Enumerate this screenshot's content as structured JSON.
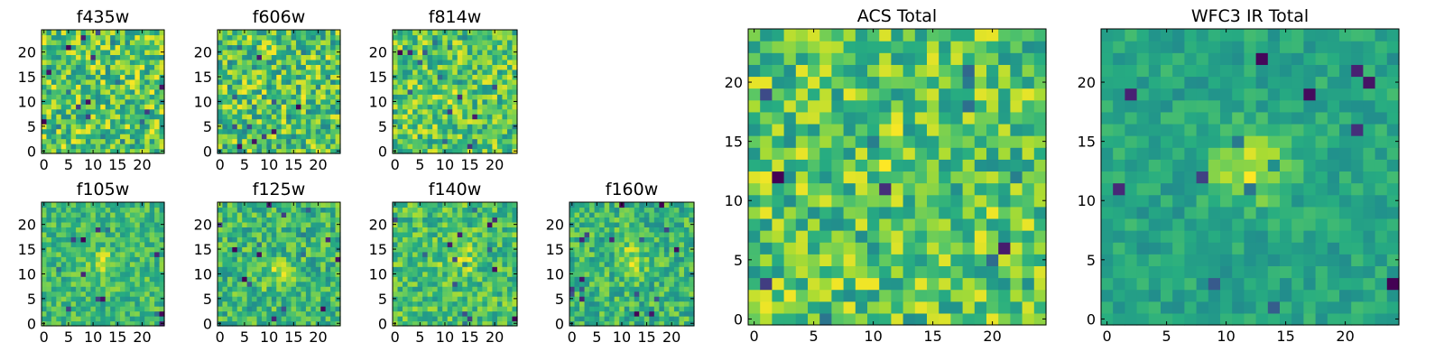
{
  "figure": {
    "colormap": "viridis",
    "colors": [
      "#440154",
      "#3b528b",
      "#21918c",
      "#5ec962",
      "#fde725"
    ]
  },
  "chart_data": [
    {
      "type": "heatmap",
      "title": "f435w",
      "grid_size": 25,
      "xticks": [
        "0",
        "5",
        "10",
        "15",
        "20"
      ],
      "yticks": [
        "0",
        "5",
        "10",
        "15",
        "20"
      ],
      "xlim": [
        0,
        24
      ],
      "ylim": [
        0,
        24
      ],
      "seed": 11,
      "blob": {
        "x": 12,
        "y": 6,
        "strength": 0.05
      },
      "noise": 0.85
    },
    {
      "type": "heatmap",
      "title": "f606w",
      "grid_size": 25,
      "xticks": [
        "0",
        "5",
        "10",
        "15",
        "20"
      ],
      "yticks": [
        "0",
        "5",
        "10",
        "15",
        "20"
      ],
      "xlim": [
        0,
        24
      ],
      "ylim": [
        0,
        24
      ],
      "seed": 23,
      "blob": {
        "x": 12,
        "y": 12,
        "strength": 0.03
      },
      "noise": 0.9
    },
    {
      "type": "heatmap",
      "title": "f814w",
      "grid_size": 25,
      "xticks": [
        "0",
        "5",
        "10",
        "15",
        "20"
      ],
      "yticks": [
        "0",
        "5",
        "10",
        "15",
        "20"
      ],
      "xlim": [
        0,
        24
      ],
      "ylim": [
        0,
        24
      ],
      "seed": 37,
      "blob": {
        "x": 12,
        "y": 12,
        "strength": 0.1
      },
      "noise": 0.85
    },
    {
      "type": "heatmap",
      "title": "f105w",
      "grid_size": 25,
      "xticks": [
        "0",
        "5",
        "10",
        "15",
        "20"
      ],
      "yticks": [
        "0",
        "5",
        "10",
        "15",
        "20"
      ],
      "xlim": [
        0,
        24
      ],
      "ylim": [
        0,
        24
      ],
      "seed": 41,
      "blob": {
        "x": 12,
        "y": 12,
        "strength": 0.3
      },
      "noise": 0.55
    },
    {
      "type": "heatmap",
      "title": "f125w",
      "grid_size": 25,
      "xticks": [
        "0",
        "5",
        "10",
        "15",
        "20"
      ],
      "yticks": [
        "0",
        "5",
        "10",
        "15",
        "20"
      ],
      "xlim": [
        0,
        24
      ],
      "ylim": [
        0,
        24
      ],
      "seed": 53,
      "blob": {
        "x": 12,
        "y": 10,
        "strength": 0.3
      },
      "noise": 0.6
    },
    {
      "type": "heatmap",
      "title": "f140w",
      "grid_size": 25,
      "xticks": [
        "0",
        "5",
        "10",
        "15",
        "20"
      ],
      "yticks": [
        "0",
        "5",
        "10",
        "15",
        "20"
      ],
      "xlim": [
        0,
        24
      ],
      "ylim": [
        0,
        24
      ],
      "seed": 67,
      "blob": {
        "x": 13,
        "y": 13,
        "strength": 0.3
      },
      "noise": 0.6
    },
    {
      "type": "heatmap",
      "title": "f160w",
      "grid_size": 25,
      "xticks": [
        "0",
        "5",
        "10",
        "15",
        "20"
      ],
      "yticks": [
        "0",
        "5",
        "10",
        "15",
        "20"
      ],
      "xlim": [
        0,
        24
      ],
      "ylim": [
        0,
        24
      ],
      "seed": 79,
      "blob": {
        "x": 12,
        "y": 13,
        "strength": 0.3
      },
      "noise": 0.55
    },
    {
      "type": "heatmap",
      "title": "ACS Total",
      "grid_size": 25,
      "xticks": [
        "0",
        "5",
        "10",
        "15",
        "20"
      ],
      "yticks": [
        "0",
        "5",
        "10",
        "15",
        "20"
      ],
      "xlim": [
        0,
        24
      ],
      "ylim": [
        0,
        24
      ],
      "seed": 97,
      "blob": {
        "x": 12,
        "y": 13,
        "strength": 0.1
      },
      "noise": 0.8
    },
    {
      "type": "heatmap",
      "title": "WFC3 IR Total",
      "grid_size": 25,
      "xticks": [
        "0",
        "5",
        "10",
        "15",
        "20"
      ],
      "yticks": [
        "0",
        "5",
        "10",
        "15",
        "20"
      ],
      "xlim": [
        0,
        24
      ],
      "ylim": [
        0,
        24
      ],
      "seed": 113,
      "blob": {
        "x": 12,
        "y": 13,
        "strength": 0.55
      },
      "noise": 0.35
    }
  ]
}
